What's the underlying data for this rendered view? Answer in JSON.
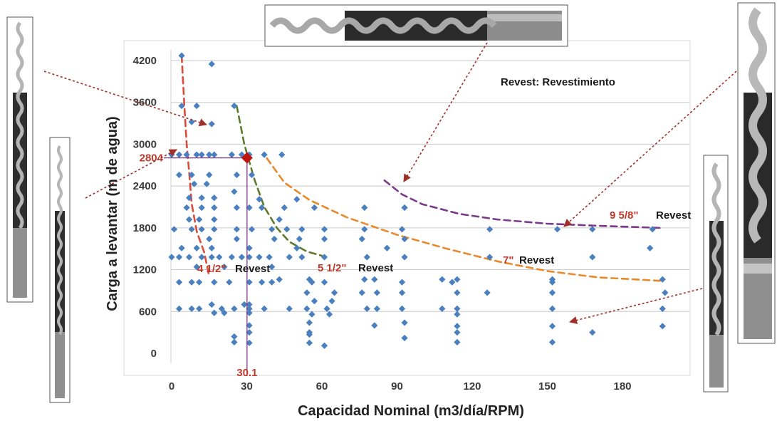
{
  "chart_data": {
    "type": "scatter",
    "title": "",
    "xlabel": "Capacidad Nominal (m3/día/RPM)",
    "ylabel": "Carga a levantar (m de agua)",
    "x_ticks": [
      "0",
      "30",
      "60",
      "90",
      "120",
      "150",
      "180"
    ],
    "y_ticks": [
      "0",
      "600",
      "1200",
      "1800",
      "2400",
      "3000",
      "3600",
      "4200"
    ],
    "xlim": [
      0,
      200
    ],
    "ylim": [
      0,
      4200
    ],
    "grid": "horizontal",
    "point_color": "#4a7fc0",
    "points": [
      [
        4,
        4270
      ],
      [
        16,
        4150
      ],
      [
        4,
        3550
      ],
      [
        10,
        3550
      ],
      [
        16,
        3290
      ],
      [
        25,
        3550
      ],
      [
        8,
        3320
      ],
      [
        0,
        2850
      ],
      [
        3,
        2850
      ],
      [
        6,
        2850
      ],
      [
        10,
        2850
      ],
      [
        12,
        2850
      ],
      [
        15,
        2850
      ],
      [
        17,
        2850
      ],
      [
        24,
        2850
      ],
      [
        28,
        2850
      ],
      [
        31,
        2850
      ],
      [
        37,
        2850
      ],
      [
        44,
        2850
      ],
      [
        3,
        2560
      ],
      [
        8,
        2560
      ],
      [
        15,
        2560
      ],
      [
        26,
        2560
      ],
      [
        32,
        2560
      ],
      [
        9,
        2430
      ],
      [
        14,
        2430
      ],
      [
        25,
        2320
      ],
      [
        35,
        2210
      ],
      [
        50,
        2210
      ],
      [
        7,
        2230
      ],
      [
        12,
        2230
      ],
      [
        17,
        2230
      ],
      [
        6,
        2090
      ],
      [
        12,
        2090
      ],
      [
        17,
        2090
      ],
      [
        26,
        2090
      ],
      [
        31,
        2090
      ],
      [
        36,
        2090
      ],
      [
        45,
        2090
      ],
      [
        57,
        2090
      ],
      [
        77,
        2090
      ],
      [
        93,
        2090
      ],
      [
        7,
        1920
      ],
      [
        11,
        1920
      ],
      [
        17,
        1920
      ],
      [
        43,
        1920
      ],
      [
        1,
        1780
      ],
      [
        8,
        1780
      ],
      [
        12,
        1780
      ],
      [
        17,
        1780
      ],
      [
        26,
        1780
      ],
      [
        32,
        1780
      ],
      [
        40,
        1780
      ],
      [
        46,
        1780
      ],
      [
        52,
        1780
      ],
      [
        61,
        1780
      ],
      [
        77,
        1780
      ],
      [
        92,
        1780
      ],
      [
        127,
        1780
      ],
      [
        154,
        1780
      ],
      [
        168,
        1780
      ],
      [
        192,
        1780
      ],
      [
        15,
        1640
      ],
      [
        26,
        1640
      ],
      [
        41,
        1640
      ],
      [
        51,
        1640
      ],
      [
        61,
        1640
      ],
      [
        76,
        1640
      ],
      [
        93,
        1640
      ],
      [
        4,
        1510
      ],
      [
        10,
        1510
      ],
      [
        16,
        1510
      ],
      [
        31,
        1510
      ],
      [
        50,
        1510
      ],
      [
        86,
        1510
      ],
      [
        191,
        1510
      ],
      [
        0,
        1380
      ],
      [
        3,
        1380
      ],
      [
        7,
        1380
      ],
      [
        12,
        1380
      ],
      [
        16,
        1380
      ],
      [
        19,
        1380
      ],
      [
        24,
        1380
      ],
      [
        28,
        1380
      ],
      [
        31,
        1380
      ],
      [
        35,
        1380
      ],
      [
        39,
        1380
      ],
      [
        47,
        1380
      ],
      [
        52,
        1380
      ],
      [
        61,
        1380
      ],
      [
        78,
        1380
      ],
      [
        93,
        1380
      ],
      [
        127,
        1380
      ],
      [
        168,
        1380
      ],
      [
        10,
        1240
      ],
      [
        21,
        1240
      ],
      [
        40,
        1240
      ],
      [
        43,
        1060
      ],
      [
        77,
        1060
      ],
      [
        81,
        1060
      ],
      [
        55,
        1060
      ],
      [
        108,
        1060
      ],
      [
        114,
        1060
      ],
      [
        152,
        1060
      ],
      [
        196,
        1060
      ],
      [
        3,
        1020
      ],
      [
        8,
        1020
      ],
      [
        11,
        1020
      ],
      [
        17,
        1020
      ],
      [
        23,
        1020
      ],
      [
        31,
        1020
      ],
      [
        36,
        1020
      ],
      [
        40,
        1020
      ],
      [
        56,
        1020
      ],
      [
        61,
        1020
      ],
      [
        92,
        1020
      ],
      [
        112,
        1020
      ],
      [
        152,
        1020
      ],
      [
        54,
        870
      ],
      [
        65,
        870
      ],
      [
        76,
        870
      ],
      [
        82,
        870
      ],
      [
        92,
        870
      ],
      [
        114,
        870
      ],
      [
        126,
        870
      ],
      [
        152,
        870
      ],
      [
        197,
        870
      ],
      [
        16,
        700
      ],
      [
        29,
        700
      ],
      [
        31,
        700
      ],
      [
        57,
        750
      ],
      [
        64,
        750
      ],
      [
        3,
        640
      ],
      [
        8,
        640
      ],
      [
        11,
        640
      ],
      [
        20,
        640
      ],
      [
        25,
        640
      ],
      [
        31,
        640
      ],
      [
        37,
        640
      ],
      [
        47,
        640
      ],
      [
        54,
        640
      ],
      [
        62,
        640
      ],
      [
        78,
        640
      ],
      [
        82,
        640
      ],
      [
        92,
        640
      ],
      [
        108,
        640
      ],
      [
        114,
        640
      ],
      [
        152,
        640
      ],
      [
        196,
        640
      ],
      [
        17,
        580
      ],
      [
        21,
        580
      ],
      [
        31,
        580
      ],
      [
        56,
        560
      ],
      [
        63,
        560
      ],
      [
        114,
        560
      ],
      [
        31,
        400
      ],
      [
        55,
        440
      ],
      [
        81,
        400
      ],
      [
        93,
        440
      ],
      [
        114,
        390
      ],
      [
        152,
        390
      ],
      [
        196,
        390
      ],
      [
        31,
        300
      ],
      [
        55,
        300
      ],
      [
        114,
        300
      ],
      [
        168,
        300
      ],
      [
        25,
        240
      ],
      [
        55,
        270
      ],
      [
        93,
        220
      ],
      [
        25,
        160
      ],
      [
        31,
        150
      ],
      [
        55,
        150
      ],
      [
        61,
        110
      ],
      [
        114,
        160
      ],
      [
        152,
        160
      ]
    ],
    "highlight": {
      "x": 30.1,
      "y": 2804,
      "x_label": "30.1",
      "y_label": "2804",
      "color": "#c0150f"
    },
    "curves": [
      {
        "name": "4 1/2\" Revest",
        "color": "#d94b3a",
        "points": [
          [
            4,
            4270
          ],
          [
            5,
            3600
          ],
          [
            6,
            3000
          ],
          [
            7,
            2600
          ],
          [
            8,
            2150
          ],
          [
            10,
            1750
          ],
          [
            13,
            1450
          ],
          [
            15,
            1100
          ]
        ]
      },
      {
        "name": "",
        "color": "#5f7a2a",
        "points": [
          [
            26,
            3550
          ],
          [
            29,
            3000
          ],
          [
            33,
            2500
          ],
          [
            37,
            2100
          ],
          [
            42,
            1800
          ],
          [
            47,
            1600
          ],
          [
            54,
            1460
          ],
          [
            60,
            1400
          ]
        ]
      },
      {
        "name": "5 1/2\" Revest",
        "color": "#e8892b",
        "points": [
          [
            38,
            2800
          ],
          [
            45,
            2450
          ],
          [
            55,
            2200
          ],
          [
            70,
            1950
          ],
          [
            90,
            1700
          ],
          [
            110,
            1500
          ],
          [
            130,
            1320
          ],
          [
            150,
            1180
          ],
          [
            170,
            1090
          ],
          [
            195,
            1040
          ]
        ]
      },
      {
        "name": "9 5/8\" Revest",
        "color": "#7b3a8a",
        "points": [
          [
            85,
            2480
          ],
          [
            92,
            2280
          ],
          [
            100,
            2140
          ],
          [
            115,
            2000
          ],
          [
            130,
            1920
          ],
          [
            150,
            1860
          ],
          [
            170,
            1830
          ],
          [
            195,
            1800
          ]
        ]
      }
    ],
    "annotations": {
      "legend_note": "Revest: Revestimiento",
      "rev_4_num": "4 1/2\"",
      "rev_4_word": "Revest",
      "rev_5_num": "5 1/2\"",
      "rev_5_word": "Revest",
      "rev_7_num": "7\"",
      "rev_7_word": "Revest",
      "rev_9_num": "9 5/8\"",
      "rev_9_word": "Revest"
    }
  }
}
